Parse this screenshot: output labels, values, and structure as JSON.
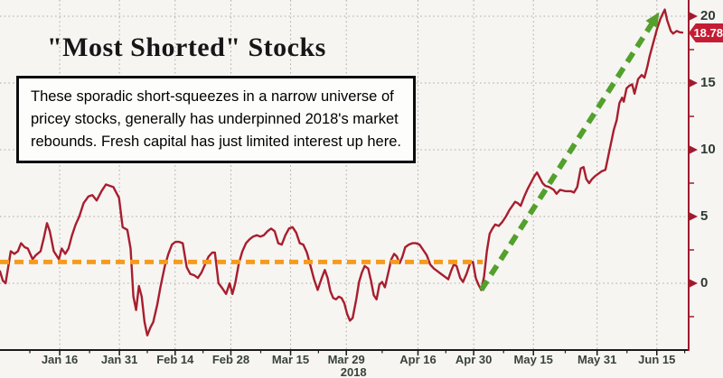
{
  "title": {
    "text": "\"Most Shorted\" Stocks"
  },
  "annotation": {
    "lines": [
      "These sporadic short-squeezes in a narrow universe of",
      "pricey stocks, generally has underpinned 2018's market",
      "rebounds. Fresh capital has just limited interest up here."
    ]
  },
  "last_price_tag": {
    "value": "18.78",
    "bg": "#c41d33",
    "fg": "#ffffff"
  },
  "chart_data": {
    "type": "line",
    "title": "\"Most Shorted\" Stocks",
    "xlabel": "2018 (Jan 16 - Jun 15)",
    "ylabel": "",
    "x_unit": "day of year 2018",
    "x_range": [
      1,
      174
    ],
    "y_range": [
      -5,
      21.3
    ],
    "grid": "dotted",
    "legend_position": "none",
    "y_ticks": [
      0,
      5,
      10,
      15,
      20
    ],
    "y_minor_ticks": [
      -2.5,
      2.5,
      7.5,
      12.5,
      17.5
    ],
    "x_minor_days": [
      8.5,
      23.5,
      38,
      52,
      66.5,
      81,
      97,
      113,
      127.5,
      143,
      158.5,
      173
    ],
    "x_ticks": [
      {
        "day": 16,
        "label": "Jan 16"
      },
      {
        "day": 31,
        "label": "Jan 31"
      },
      {
        "day": 45,
        "label": "Feb 14"
      },
      {
        "day": 59,
        "label": "Feb 28"
      },
      {
        "day": 74,
        "label": "Mar 15"
      },
      {
        "day": 88,
        "label": "Mar 29",
        "year": "2018"
      },
      {
        "day": 106,
        "label": "Apr 16"
      },
      {
        "day": 120,
        "label": "Apr 30"
      },
      {
        "day": 135,
        "label": "May 15"
      },
      {
        "day": 151,
        "label": "May 31"
      },
      {
        "day": 166,
        "label": "Jun 15"
      }
    ],
    "last_value": 18.78,
    "series": [
      {
        "name": "Most Shorted stocks index (% move)",
        "role": "price",
        "color": "#a81e2e",
        "style": "solid",
        "points": [
          [
            1,
            0.9
          ],
          [
            1.7,
            0.2
          ],
          [
            2.4,
            0
          ],
          [
            3.7,
            2.4
          ],
          [
            4.6,
            2.2
          ],
          [
            5.5,
            2.4
          ],
          [
            6.3,
            3
          ],
          [
            7.2,
            2.7
          ],
          [
            8,
            2.6
          ],
          [
            9.2,
            1.8
          ],
          [
            10,
            2.1
          ],
          [
            11.2,
            2.4
          ],
          [
            12,
            3.4
          ],
          [
            12.8,
            4.5
          ],
          [
            13.5,
            3.9
          ],
          [
            14.5,
            2.4
          ],
          [
            15.8,
            1.8
          ],
          [
            16.5,
            2.6
          ],
          [
            17.4,
            2.2
          ],
          [
            18.2,
            2.6
          ],
          [
            19.1,
            3.6
          ],
          [
            20,
            4.4
          ],
          [
            20.9,
            5
          ],
          [
            22,
            6
          ],
          [
            23.2,
            6.5
          ],
          [
            24.2,
            6.6
          ],
          [
            25.3,
            6.2
          ],
          [
            26.5,
            6.9
          ],
          [
            27.6,
            7.4
          ],
          [
            28.6,
            7.3
          ],
          [
            29.5,
            7.2
          ],
          [
            30.2,
            6.8
          ],
          [
            30.9,
            6.4
          ],
          [
            31.8,
            4.2
          ],
          [
            33,
            4
          ],
          [
            33.8,
            2.6
          ],
          [
            34.5,
            -1
          ],
          [
            35.2,
            -2
          ],
          [
            35.9,
            -0.2
          ],
          [
            36.6,
            -1
          ],
          [
            37.3,
            -2.9
          ],
          [
            38,
            -3.9
          ],
          [
            38.8,
            -3.3
          ],
          [
            39.5,
            -2.9
          ],
          [
            40.5,
            -1.6
          ],
          [
            41.3,
            -0.3
          ],
          [
            42.4,
            1.3
          ],
          [
            43.3,
            2.2
          ],
          [
            44.2,
            2.9
          ],
          [
            45.1,
            3.1
          ],
          [
            46,
            3.1
          ],
          [
            46.9,
            3
          ],
          [
            47.9,
            1.2
          ],
          [
            48.8,
            0.7
          ],
          [
            49.8,
            0.6
          ],
          [
            50.7,
            0.4
          ],
          [
            51.6,
            0.8
          ],
          [
            52.5,
            1.4
          ],
          [
            53.4,
            2
          ],
          [
            54.3,
            2.3
          ],
          [
            55,
            2.3
          ],
          [
            55.9,
            0
          ],
          [
            56.9,
            -0.4
          ],
          [
            57.8,
            -0.8
          ],
          [
            58.7,
            0
          ],
          [
            59.4,
            -0.8
          ],
          [
            60.1,
            0
          ],
          [
            61,
            1.5
          ],
          [
            61.9,
            2.4
          ],
          [
            62.8,
            3
          ],
          [
            63.7,
            3.3
          ],
          [
            64.6,
            3.5
          ],
          [
            65.5,
            3.6
          ],
          [
            66.4,
            3.5
          ],
          [
            67.3,
            3.6
          ],
          [
            68.2,
            3.9
          ],
          [
            69.1,
            4.1
          ],
          [
            70,
            3.9
          ],
          [
            70.9,
            3
          ],
          [
            71.8,
            2.9
          ],
          [
            72.7,
            3.6
          ],
          [
            73.6,
            4.1
          ],
          [
            74.5,
            4.2
          ],
          [
            75.4,
            3.8
          ],
          [
            76.3,
            3
          ],
          [
            77.2,
            2.9
          ],
          [
            78.1,
            2.3
          ],
          [
            79,
            1.3
          ],
          [
            79.9,
            0.3
          ],
          [
            80.8,
            -0.5
          ],
          [
            81.7,
            0.3
          ],
          [
            82.6,
            1
          ],
          [
            83.3,
            0.4
          ],
          [
            84,
            -0.6
          ],
          [
            84.7,
            -1.1
          ],
          [
            85.4,
            -1.2
          ],
          [
            86.1,
            -1
          ],
          [
            86.8,
            -1.1
          ],
          [
            87.5,
            -1.5
          ],
          [
            88.2,
            -2.3
          ],
          [
            88.9,
            -2.8
          ],
          [
            89.6,
            -2.6
          ],
          [
            90.5,
            -1.2
          ],
          [
            91.2,
            0.1
          ],
          [
            91.9,
            0.8
          ],
          [
            92.6,
            1.3
          ],
          [
            93.5,
            1.1
          ],
          [
            94.2,
            0.2
          ],
          [
            94.9,
            -0.9
          ],
          [
            95.6,
            -1.2
          ],
          [
            96.3,
            -0.1
          ],
          [
            97,
            0.1
          ],
          [
            97.7,
            -0.3
          ],
          [
            98.4,
            0.6
          ],
          [
            99.3,
            1.8
          ],
          [
            100,
            2.2
          ],
          [
            100.7,
            2
          ],
          [
            101.4,
            1.5
          ],
          [
            102.1,
            2
          ],
          [
            102.8,
            2.7
          ],
          [
            103.7,
            2.9
          ],
          [
            104.6,
            3
          ],
          [
            105.5,
            3
          ],
          [
            106.4,
            2.9
          ],
          [
            107.3,
            2.5
          ],
          [
            108.2,
            2.1
          ],
          [
            109.1,
            1.4
          ],
          [
            110,
            1.1
          ],
          [
            110.9,
            0.9
          ],
          [
            111.8,
            0.7
          ],
          [
            112.7,
            0.5
          ],
          [
            113.6,
            0.3
          ],
          [
            114.3,
            0.9
          ],
          [
            115,
            1.4
          ],
          [
            115.7,
            1.3
          ],
          [
            116.6,
            0.4
          ],
          [
            117.3,
            0.1
          ],
          [
            118.2,
            0.7
          ],
          [
            119.1,
            1.5
          ],
          [
            119.8,
            1.6
          ],
          [
            120.5,
            0.4
          ],
          [
            121.2,
            -0.1
          ],
          [
            121.9,
            -0.5
          ],
          [
            122.6,
            0.5
          ],
          [
            123.3,
            2.4
          ],
          [
            124,
            3.7
          ],
          [
            124.7,
            4.1
          ],
          [
            125.4,
            4.4
          ],
          [
            126.3,
            4.3
          ],
          [
            127.2,
            4.6
          ],
          [
            128.1,
            5
          ],
          [
            129,
            5.5
          ],
          [
            129.7,
            5.8
          ],
          [
            130.4,
            6.1
          ],
          [
            131.1,
            6
          ],
          [
            131.8,
            5.8
          ],
          [
            132.7,
            6.5
          ],
          [
            133.6,
            7.1
          ],
          [
            134.5,
            7.6
          ],
          [
            135.2,
            8
          ],
          [
            135.9,
            8.3
          ],
          [
            136.6,
            7.9
          ],
          [
            137.3,
            7.5
          ],
          [
            138,
            7.3
          ],
          [
            139,
            7.2
          ],
          [
            140.1,
            7
          ],
          [
            140.8,
            6.7
          ],
          [
            141.7,
            7
          ],
          [
            143,
            6.9
          ],
          [
            144.4,
            6.9
          ],
          [
            145.2,
            6.8
          ],
          [
            146,
            7.2
          ],
          [
            146.9,
            8.6
          ],
          [
            147.6,
            8.7
          ],
          [
            148.3,
            7.8
          ],
          [
            149,
            7.5
          ],
          [
            149.7,
            7.8
          ],
          [
            150.4,
            8
          ],
          [
            151.3,
            8.2
          ],
          [
            152.2,
            8.4
          ],
          [
            153.1,
            8.5
          ],
          [
            153.8,
            9.5
          ],
          [
            154.5,
            10.5
          ],
          [
            155.2,
            11.5
          ],
          [
            155.9,
            12.2
          ],
          [
            156.6,
            13.5
          ],
          [
            157.3,
            13.9
          ],
          [
            157.7,
            13.6
          ],
          [
            158.4,
            14.6
          ],
          [
            159.1,
            14.8
          ],
          [
            159.8,
            14.9
          ],
          [
            160.4,
            14.2
          ],
          [
            161.3,
            15.3
          ],
          [
            162.2,
            15.6
          ],
          [
            162.9,
            15.4
          ],
          [
            163.6,
            16.2
          ],
          [
            164.2,
            17
          ],
          [
            165.1,
            18
          ],
          [
            166,
            19
          ],
          [
            166.9,
            19.8
          ],
          [
            167.5,
            20.2
          ],
          [
            168,
            20.5
          ],
          [
            168.6,
            19.7
          ],
          [
            169.5,
            18.9
          ],
          [
            170.1,
            18.7
          ],
          [
            171,
            18.9
          ],
          [
            171.8,
            18.8
          ],
          [
            172.4,
            18.78
          ]
        ]
      },
      {
        "name": "Flat range baseline (orange dashed)",
        "role": "baseline",
        "color": "#f59b1e",
        "style": "dashed",
        "points": [
          [
            1,
            1.6
          ],
          [
            122.3,
            1.6
          ]
        ]
      },
      {
        "name": "Short-squeeze trend arrow (green dashed)",
        "role": "trend",
        "color": "#53a02d",
        "style": "dashed-arrow",
        "points": [
          [
            121.9,
            -0.5
          ],
          [
            166.6,
            20.3
          ]
        ]
      }
    ],
    "colors": {
      "y_axis": "#9e1b2e",
      "x_axis": "#1b1b1b",
      "grid": "#a9a7a3",
      "tick_label": "#39423b"
    }
  }
}
